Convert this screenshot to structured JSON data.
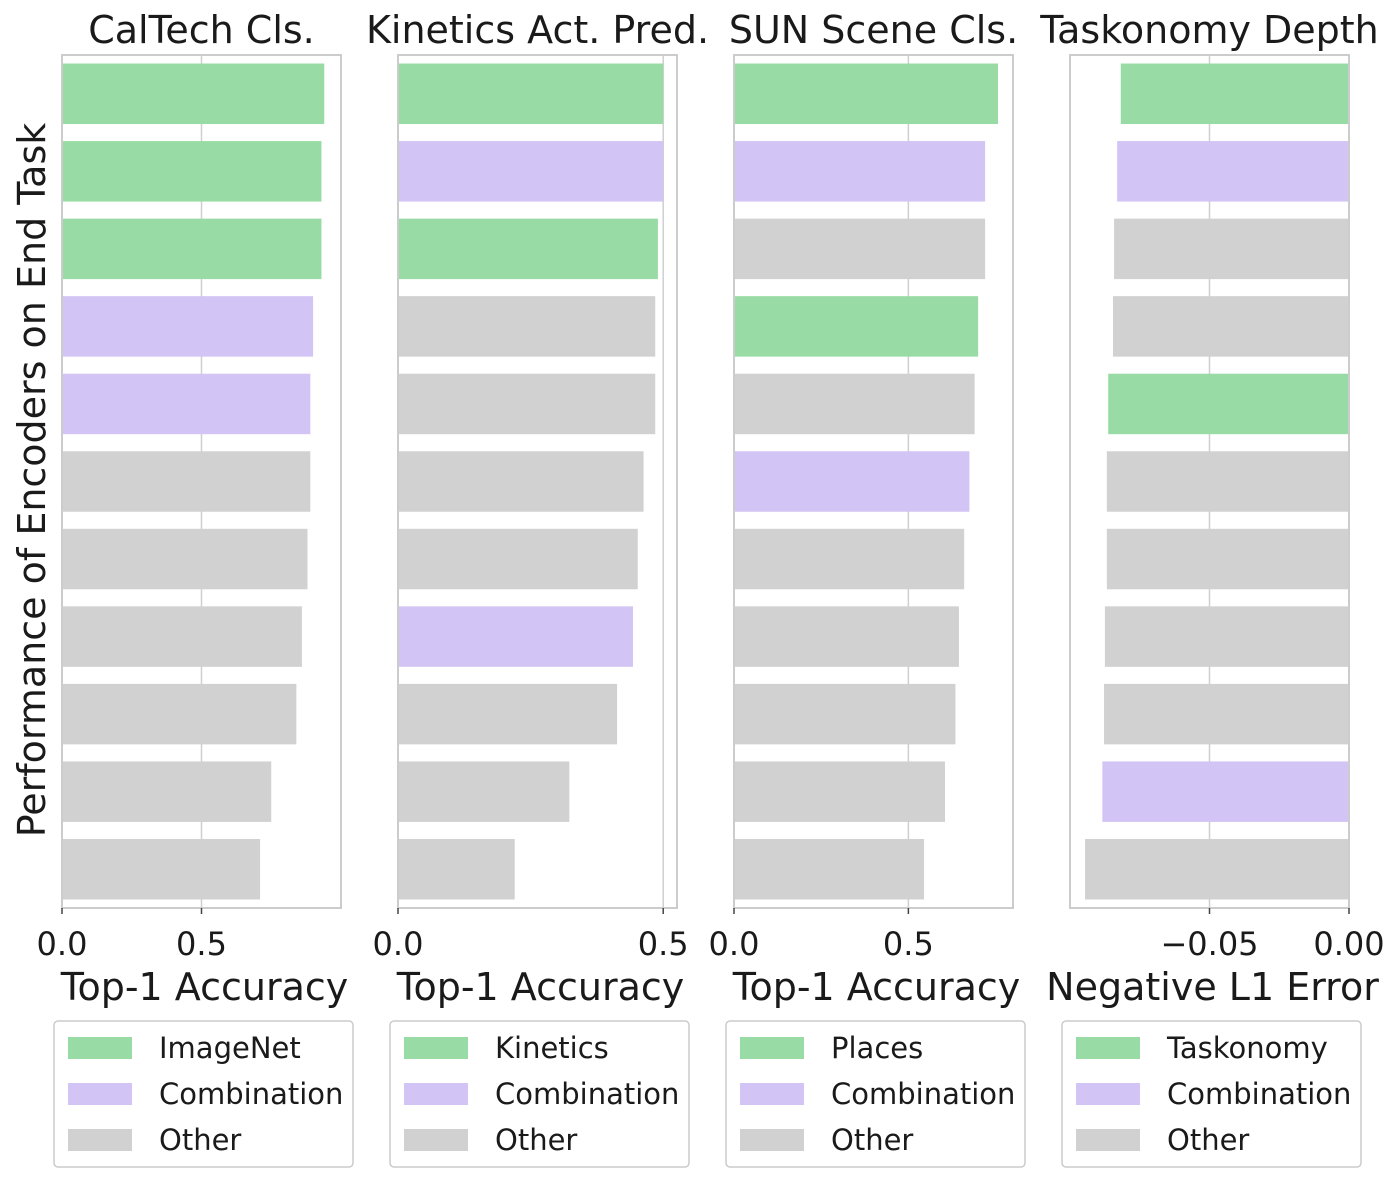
{
  "colors": {
    "green": "#98dba4",
    "purple": "#d2c4f4",
    "gray": "#d1d1d1",
    "frame": "#cccccc",
    "grid": "#cfcfcf"
  },
  "figure": {
    "ylabel": "Performance of Encoders on End Task"
  },
  "chart_data": [
    {
      "type": "bar",
      "orientation": "horizontal",
      "title": "CalTech Cls.",
      "xlabel": "Top-1 Accuracy",
      "xlim": [
        0,
        1.0
      ],
      "xticks": [
        0.0,
        0.5
      ],
      "xtick_labels": [
        "0.0",
        "0.5"
      ],
      "values": [
        0.94,
        0.93,
        0.93,
        0.9,
        0.89,
        0.89,
        0.88,
        0.86,
        0.84,
        0.75,
        0.71
      ],
      "groups": [
        "primary",
        "primary",
        "primary",
        "combination",
        "combination",
        "other",
        "other",
        "other",
        "other",
        "other",
        "other"
      ],
      "legend": [
        {
          "key": "primary",
          "label": "ImageNet",
          "color": "#98dba4"
        },
        {
          "key": "combination",
          "label": "Combination",
          "color": "#d2c4f4"
        },
        {
          "key": "other",
          "label": "Other",
          "color": "#d1d1d1"
        }
      ],
      "grid": true,
      "legend_position": "below"
    },
    {
      "type": "bar",
      "orientation": "horizontal",
      "title": "Kinetics Act. Pred.",
      "xlabel": "Top-1 Accuracy",
      "xlim": [
        0,
        0.526
      ],
      "xticks": [
        0.0,
        0.5
      ],
      "xtick_labels": [
        "0.0",
        "0.5"
      ],
      "values": [
        0.5,
        0.5,
        0.49,
        0.485,
        0.485,
        0.463,
        0.452,
        0.443,
        0.413,
        0.323,
        0.22
      ],
      "groups": [
        "primary",
        "combination",
        "primary",
        "other",
        "other",
        "other",
        "other",
        "combination",
        "other",
        "other",
        "other"
      ],
      "legend": [
        {
          "key": "primary",
          "label": "Kinetics",
          "color": "#98dba4"
        },
        {
          "key": "combination",
          "label": "Combination",
          "color": "#d2c4f4"
        },
        {
          "key": "other",
          "label": "Other",
          "color": "#d1d1d1"
        }
      ],
      "grid": true,
      "legend_position": "below"
    },
    {
      "type": "bar",
      "orientation": "horizontal",
      "title": "SUN Scene Cls.",
      "xlabel": "Top-1 Accuracy",
      "xlim": [
        0,
        0.8
      ],
      "xticks": [
        0.0,
        0.5
      ],
      "xtick_labels": [
        "0.0",
        "0.5"
      ],
      "values": [
        0.757,
        0.72,
        0.72,
        0.7,
        0.69,
        0.675,
        0.66,
        0.645,
        0.635,
        0.605,
        0.545
      ],
      "groups": [
        "primary",
        "combination",
        "other",
        "primary",
        "other",
        "combination",
        "other",
        "other",
        "other",
        "other",
        "other"
      ],
      "legend": [
        {
          "key": "primary",
          "label": "Places",
          "color": "#98dba4"
        },
        {
          "key": "combination",
          "label": "Combination",
          "color": "#d2c4f4"
        },
        {
          "key": "other",
          "label": "Other",
          "color": "#d1d1d1"
        }
      ],
      "grid": true,
      "legend_position": "below"
    },
    {
      "type": "bar",
      "orientation": "horizontal",
      "title": "Taskonomy Depth",
      "xlabel": "Negative L1 Error",
      "xlim": [
        -0.1,
        0.0
      ],
      "xticks": [
        -0.05,
        0.0
      ],
      "xtick_labels": [
        "−0.05",
        "0.00"
      ],
      "values": [
        -0.0818,
        -0.0831,
        -0.0842,
        -0.0846,
        -0.0863,
        -0.0868,
        -0.0868,
        -0.0875,
        -0.0878,
        -0.0884,
        -0.0946
      ],
      "groups": [
        "primary",
        "combination",
        "other",
        "other",
        "primary",
        "other",
        "other",
        "other",
        "other",
        "combination",
        "other"
      ],
      "legend": [
        {
          "key": "primary",
          "label": "Taskonomy",
          "color": "#98dba4"
        },
        {
          "key": "combination",
          "label": "Combination",
          "color": "#d2c4f4"
        },
        {
          "key": "other",
          "label": "Other",
          "color": "#d1d1d1"
        }
      ],
      "grid": true,
      "legend_position": "below"
    }
  ]
}
